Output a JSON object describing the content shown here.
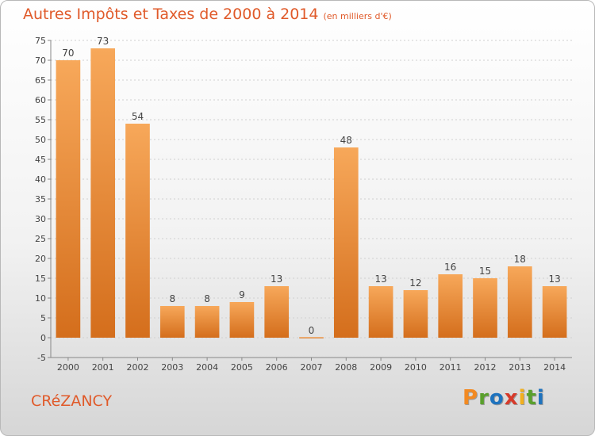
{
  "title": "Autres Impôts et Taxes de 2000 à 2014",
  "subtitle": "(en milliers d'€)",
  "commune": "CRéZANCY",
  "logo": {
    "text": "Proxiti",
    "letters": [
      "P",
      "r",
      "o",
      "x",
      "i",
      "t",
      "i"
    ],
    "colors": [
      "#f28a22",
      "#5aa02c",
      "#1e73be",
      "#d63a2a",
      "#f2b01e",
      "#5aa02c",
      "#1e73be"
    ]
  },
  "colors": {
    "bar_top": "#f7a85a",
    "bar_bottom": "#d46e1c",
    "title": "#e05a2a",
    "grid": "#d0d0d0"
  },
  "chart_data": {
    "type": "bar",
    "categories": [
      "2000",
      "2001",
      "2002",
      "2003",
      "2004",
      "2005",
      "2006",
      "2007",
      "2008",
      "2009",
      "2010",
      "2011",
      "2012",
      "2013",
      "2014"
    ],
    "values": [
      70,
      73,
      54,
      8,
      8,
      9,
      13,
      0,
      48,
      13,
      12,
      16,
      15,
      18,
      13
    ],
    "ylim": [
      -5,
      75
    ],
    "yticks": [
      -5,
      0,
      5,
      10,
      15,
      20,
      25,
      30,
      35,
      40,
      45,
      50,
      55,
      60,
      65,
      70,
      75
    ],
    "grid": true,
    "xlabel": "",
    "ylabel": ""
  }
}
